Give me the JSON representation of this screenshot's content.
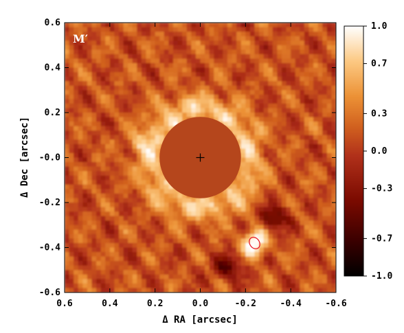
{
  "chart_data": {
    "type": "heatmap",
    "band_label": "M′",
    "xlabel": "Δ RA [arcsec]",
    "ylabel": "Δ Dec [arcsec]",
    "xlim": [
      0.6,
      -0.6
    ],
    "ylim": [
      -0.6,
      0.6
    ],
    "x_ticks": [
      "0.6",
      "0.4",
      "0.2",
      "0.0",
      "-0.2",
      "-0.4",
      "-0.6"
    ],
    "y_ticks": [
      "-0.6",
      "-0.4",
      "-0.2",
      "-0.0",
      "0.2",
      "0.4",
      "0.6"
    ],
    "x_tick_values": [
      0.6,
      0.4,
      0.2,
      0.0,
      -0.2,
      -0.4,
      -0.6
    ],
    "y_tick_values": [
      -0.6,
      -0.4,
      -0.2,
      0.0,
      0.2,
      0.4,
      0.6
    ],
    "colorbar": {
      "range": [
        -1.0,
        1.0
      ],
      "tick_labels": [
        "1.0",
        "0.7",
        "0.3",
        "0.0",
        "-0.3",
        "-0.7",
        "-1.0"
      ],
      "tick_values": [
        1.0,
        0.7,
        0.3,
        0.0,
        -0.3,
        -0.7,
        -1.0
      ],
      "colors": [
        "#000000",
        "#3a0000",
        "#8a0e00",
        "#b83c10",
        "#d96a22",
        "#f09a40",
        "#ffd9a0",
        "#ffffff"
      ]
    },
    "mask": {
      "center_ra": 0.0,
      "center_dec": 0.0,
      "radius_arcsec": 0.18,
      "color": "#b5461c"
    },
    "star_marker": {
      "ra": 0.0,
      "dec": 0.0,
      "symbol": "+"
    },
    "companion": {
      "ra": -0.24,
      "dec": -0.38,
      "color": "#e8202a"
    },
    "background_color": "#cf6a2c"
  }
}
